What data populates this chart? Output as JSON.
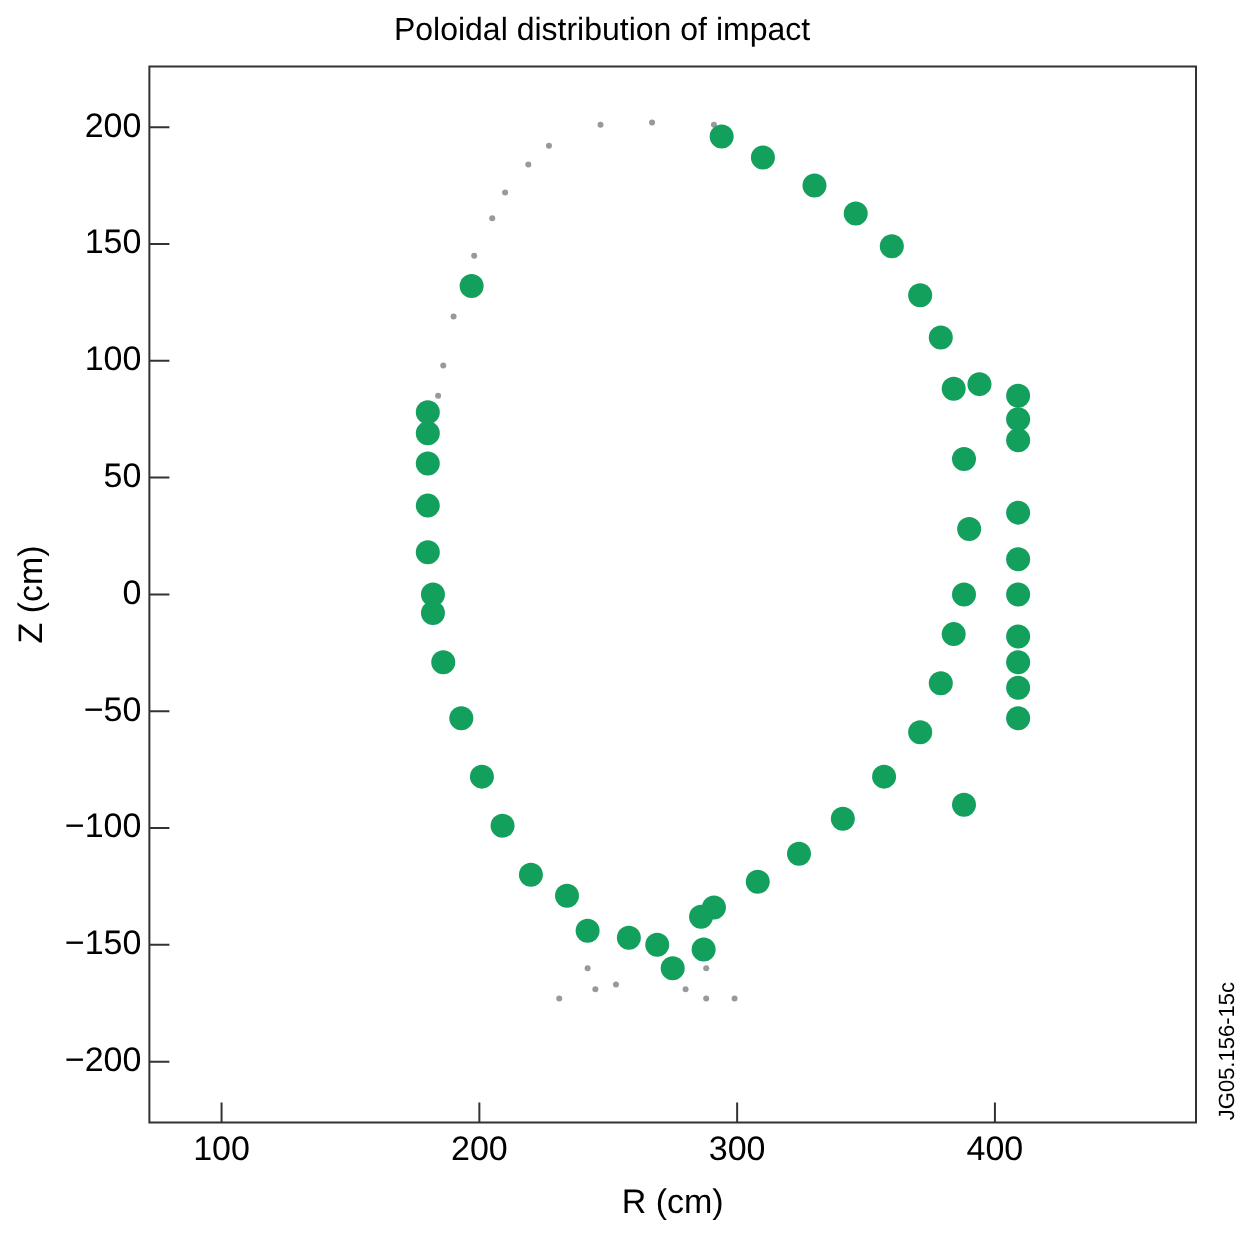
{
  "chart_data": {
    "type": "scatter",
    "title": "Poloidal distribution of impact",
    "xlabel": "R (cm)",
    "ylabel": "Z (cm)",
    "xlim": [
      72,
      478
    ],
    "ylim": [
      -226,
      226
    ],
    "xticks": [
      100,
      200,
      300,
      400
    ],
    "yticks": [
      {
        "value": -200,
        "label": "−200"
      },
      {
        "value": -150,
        "label": "−150"
      },
      {
        "value": -100,
        "label": "−100"
      },
      {
        "value": -50,
        "label": "−50"
      },
      0,
      50,
      100,
      150,
      200
    ],
    "grid": false,
    "legend": false,
    "marker": "circle",
    "annotations": [
      "JG05.156-15c"
    ],
    "series": [
      {
        "color": "#12a05c",
        "x": [
          294,
          310,
          330,
          346,
          360,
          371,
          379,
          384,
          388,
          390,
          388,
          384,
          379,
          371,
          357,
          341,
          324,
          308,
          291,
          286,
          180,
          182,
          182,
          186,
          193,
          201,
          209,
          220,
          234,
          242,
          258,
          269,
          275,
          287,
          180,
          180,
          180,
          180,
          197,
          409,
          409,
          409,
          409,
          409,
          409,
          409,
          409,
          409,
          409,
          388,
          394
        ],
        "values": [
          196,
          187,
          175,
          163,
          149,
          128,
          110,
          88,
          58,
          28,
          0,
          -17,
          -38,
          -59,
          -78,
          -96,
          -111,
          -123,
          -134,
          -138,
          18,
          0,
          -8,
          -29,
          -53,
          -78,
          -99,
          -120,
          -129,
          -144,
          -147,
          -150,
          -160,
          -152,
          78,
          69,
          56,
          38,
          132,
          85,
          75,
          66,
          35,
          15,
          0,
          -18,
          -29,
          -40,
          -53,
          -90,
          90
        ]
      },
      {
        "color": "#999999",
        "x": [
          291,
          267,
          247,
          227,
          219,
          210,
          205,
          198,
          190,
          186,
          184,
          231,
          245,
          253,
          242,
          280,
          288,
          299,
          288
        ],
        "values": [
          201,
          202,
          201,
          192,
          184,
          172,
          161,
          145,
          119,
          98,
          85,
          -173,
          -169,
          -167,
          -160,
          -169,
          -173,
          -173,
          -160
        ]
      }
    ]
  }
}
